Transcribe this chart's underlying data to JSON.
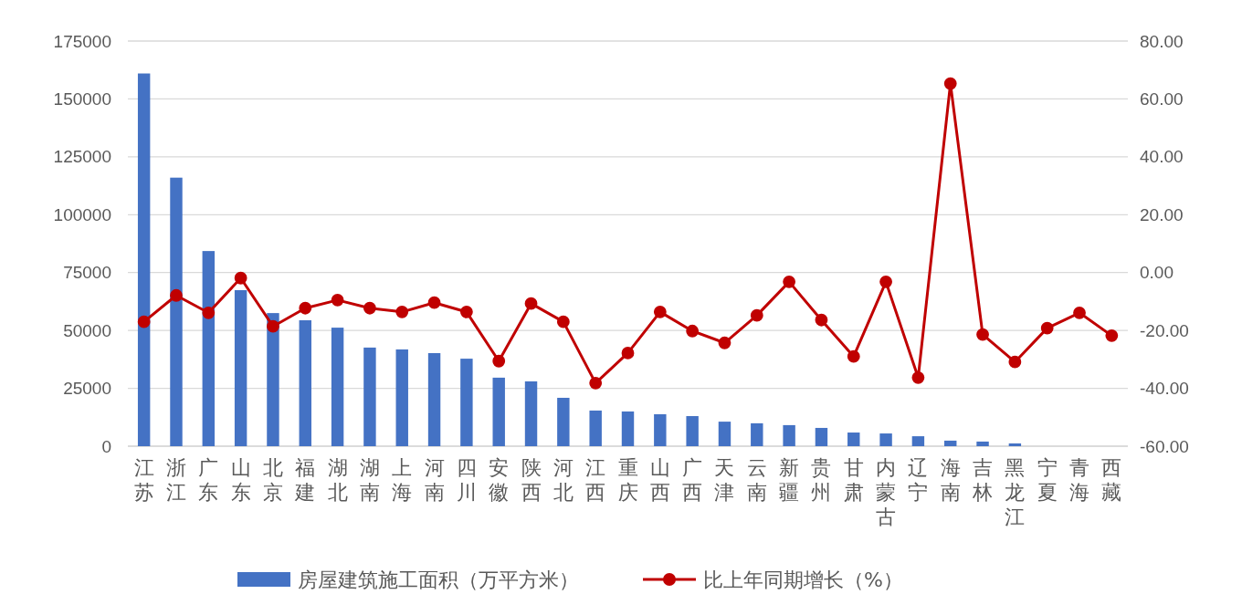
{
  "chart_data": {
    "type": "bar",
    "categories": [
      "江苏",
      "浙江",
      "广东",
      "山东",
      "北京",
      "福建",
      "湖北",
      "湖南",
      "上海",
      "河南",
      "四川",
      "安徽",
      "陕西",
      "河北",
      "江西",
      "重庆",
      "山西",
      "广西",
      "天津",
      "云南",
      "新疆",
      "贵州",
      "甘肃",
      "内蒙古",
      "辽宁",
      "海南",
      "吉林",
      "黑龙江",
      "宁夏",
      "青海",
      "西藏"
    ],
    "series": [
      {
        "name": "房屋建筑施工面积（万平方米）",
        "color": "#4472c4",
        "values": [
          161000,
          116000,
          84300,
          67400,
          57500,
          54400,
          51200,
          42600,
          41800,
          40200,
          37800,
          29600,
          28000,
          20900,
          15400,
          15000,
          13800,
          13000,
          10600,
          9900,
          9100,
          7900,
          5900,
          5500,
          4300,
          2400,
          2000,
          1200,
          null,
          null,
          null
        ]
      },
      {
        "name": "比上年同期增长（%）",
        "type": "line",
        "axis": "y2",
        "color": "#c00000",
        "values": [
          -17,
          -7.9,
          -13.9,
          -1.9,
          -18.6,
          -12.3,
          -9.5,
          -12.3,
          -13.6,
          -10.4,
          -13.6,
          -30.6,
          -10.7,
          -17,
          -38.2,
          -27.8,
          -13.6,
          -20.2,
          -24.3,
          -14.8,
          -3.2,
          -16.4,
          -29,
          -3.2,
          -36.3,
          65.3,
          -21.4,
          -30.9,
          -19.2,
          -13.9,
          -21.8
        ]
      }
    ],
    "ylim": [
      0,
      175000
    ],
    "yticks": [
      0,
      25000,
      50000,
      75000,
      100000,
      125000,
      150000,
      175000
    ],
    "y2lim": [
      -60,
      80
    ],
    "y2ticks": [
      {
        "value": -60,
        "label": "-60.00"
      },
      {
        "value": -40,
        "label": "-40.00"
      },
      {
        "value": -20,
        "label": "-20.00"
      },
      {
        "value": 0,
        "label": "0.00"
      },
      {
        "value": 20,
        "label": "20.00"
      },
      {
        "value": 40,
        "label": "40.00"
      },
      {
        "value": 60,
        "label": "60.00"
      },
      {
        "value": 80,
        "label": "80.00"
      }
    ],
    "grid": "y",
    "legend": "bottom",
    "marker": "circle",
    "line_style": "solid"
  }
}
